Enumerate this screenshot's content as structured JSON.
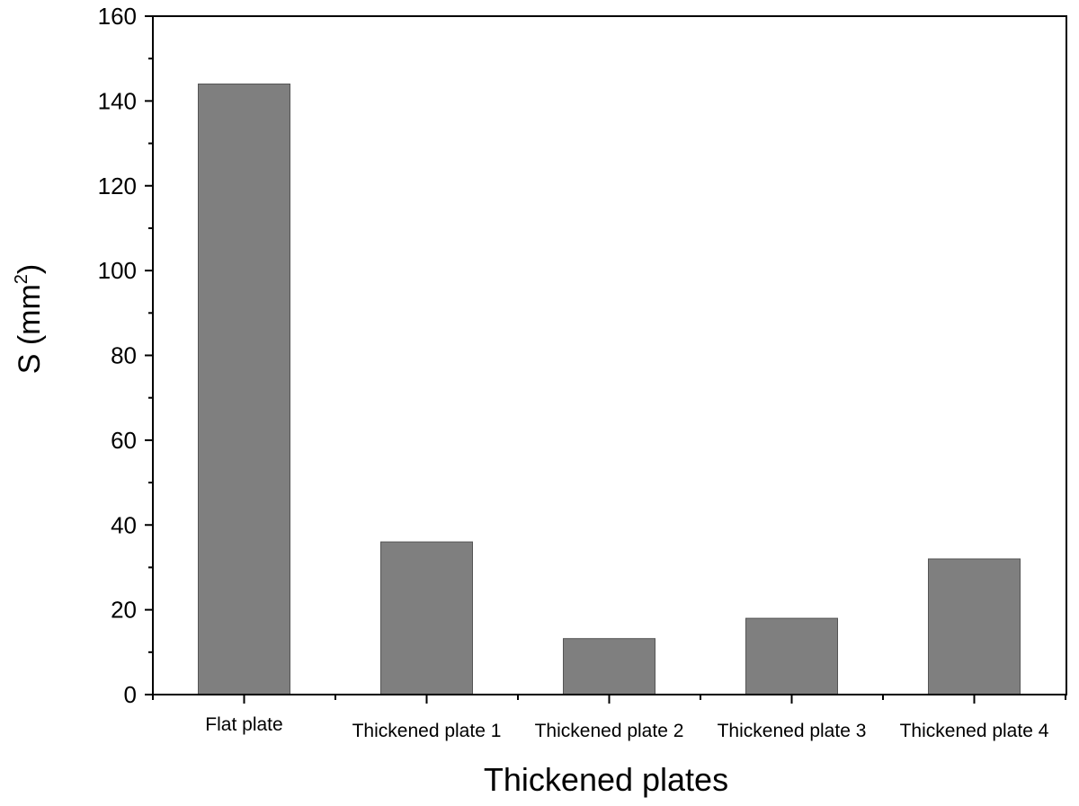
{
  "chart_data": {
    "type": "bar",
    "categories": [
      "Flat plate",
      "Thickened plate 1",
      "Thickened plate 2",
      "Thickened plate 3",
      "Thickened plate 4"
    ],
    "values": [
      144,
      36,
      13.2,
      18,
      32
    ],
    "xlabel": "Thickened plates",
    "ylabel": {
      "main": "S (mm",
      "superscript": "2",
      "suffix": ")"
    },
    "ylim": [
      0,
      160
    ],
    "yticks": [
      "0",
      "20",
      "40",
      "60",
      "80",
      "100",
      "120",
      "140",
      "160"
    ],
    "grid": false,
    "legend": "none",
    "colors": {
      "bar_fill": "#7f7f7f",
      "bar_stroke": "#555555",
      "axis": "#000000"
    }
  }
}
